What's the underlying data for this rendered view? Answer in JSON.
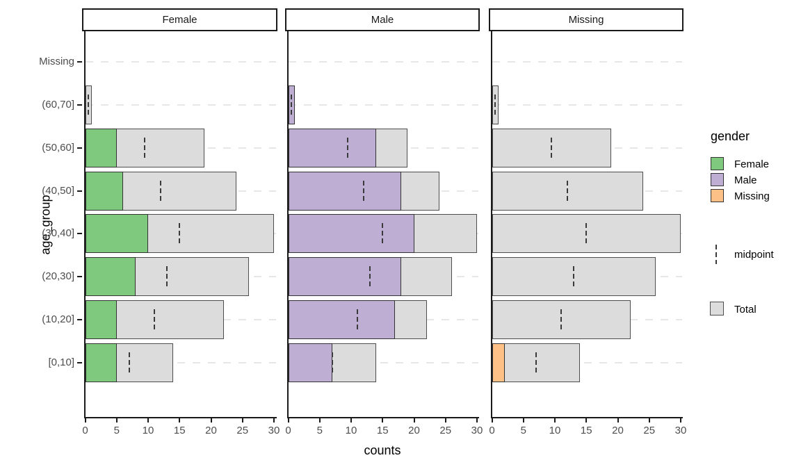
{
  "chart_data": {
    "type": "bar",
    "orientation": "horizontal",
    "facets": [
      "Female",
      "Male",
      "Missing"
    ],
    "categories_top_to_bottom": [
      "Missing",
      "(60,70]",
      "(50,60]",
      "(40,50]",
      "(30,40]",
      "(20,30]",
      "(10,20]",
      "[0,10]"
    ],
    "totals": [
      0,
      1,
      19,
      24,
      30,
      26,
      22,
      14
    ],
    "midpoints": [
      0,
      0.5,
      9.5,
      12,
      15,
      13,
      11,
      7
    ],
    "series": [
      {
        "name": "Female",
        "color": "#7FC97F",
        "values": [
          0,
          0,
          5,
          6,
          10,
          8,
          5,
          5
        ]
      },
      {
        "name": "Male",
        "color": "#BEAED4",
        "values": [
          0,
          1,
          14,
          18,
          20,
          18,
          17,
          7
        ]
      },
      {
        "name": "Missing",
        "color": "#FDC086",
        "values": [
          0,
          0,
          0,
          0,
          0,
          0,
          0,
          2
        ]
      }
    ],
    "xlabel": "counts",
    "ylabel": "age_group",
    "x_ticks": [
      0,
      5,
      10,
      15,
      20,
      25,
      30
    ],
    "xlim": [
      0,
      30
    ],
    "grid": "dashed-horizontal-per-category",
    "legend_position": "right"
  },
  "legend": {
    "title": "gender",
    "midpoint_label": "midpoint",
    "total_label": "Total"
  },
  "colors": {
    "total_fill": "#DCDCDC",
    "total_outline": "#4D4D4D",
    "bar_outline": "#333333",
    "axis_line": "#1A1A1A",
    "axis_text": "#4D4D4D",
    "gridline": "#E7E7E7",
    "midpoint_marker": "#3A3A3A",
    "strip_border": "#1A1A1A",
    "background": "#FFFFFF"
  }
}
